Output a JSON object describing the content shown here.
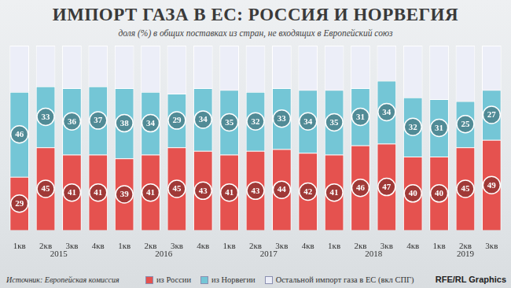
{
  "chart_data": {
    "type": "bar",
    "title": "ИМПОРТ ГАЗА В ЕС: РОССИЯ И НОРВЕГИЯ",
    "subtitle": "доля (%) в общих поставках из стран, не входящих в Европейский союз",
    "source": "Источник: Европейская комиссия",
    "credit": "RFE/RL Graphics",
    "categories": [
      "1кв",
      "2кв",
      "3кв",
      "4кв",
      "1кв",
      "2кв",
      "3кв",
      "4кв",
      "1кв",
      "2кв",
      "3кв",
      "4кв",
      "1кв",
      "2кв",
      "3кв",
      "4кв",
      "1кв",
      "2кв",
      "3кв"
    ],
    "groups": [
      "2015",
      "2015",
      "2015",
      "2015",
      "2016",
      "2016",
      "2016",
      "2016",
      "2017",
      "2017",
      "2017",
      "2017",
      "2018",
      "2018",
      "2018",
      "2018",
      "2019",
      "2019",
      "2019"
    ],
    "series": [
      {
        "name": "из России",
        "color": "#e5524f",
        "data_labels": true,
        "values": [
          29,
          45,
          41,
          41,
          39,
          41,
          45,
          43,
          41,
          43,
          44,
          42,
          41,
          46,
          47,
          40,
          40,
          45,
          49
        ]
      },
      {
        "name": "из Норвегии",
        "color": "#74c6d6",
        "data_labels": true,
        "values": [
          46,
          33,
          36,
          37,
          38,
          34,
          29,
          34,
          35,
          32,
          33,
          34,
          35,
          31,
          34,
          32,
          31,
          25,
          27
        ]
      },
      {
        "name": "Остальной импорт газа в ЕС (вкл СПГ)",
        "color": "#eceef8",
        "data_labels": false,
        "values": [
          25,
          22,
          23,
          22,
          23,
          25,
          26,
          23,
          24,
          25,
          23,
          24,
          24,
          23,
          19,
          28,
          29,
          30,
          24
        ]
      }
    ],
    "stacked": true,
    "ylim": [
      0,
      100
    ],
    "yticks": [],
    "tick_labels": "x",
    "grid": false,
    "legend": "bottom",
    "data_labels": true
  }
}
